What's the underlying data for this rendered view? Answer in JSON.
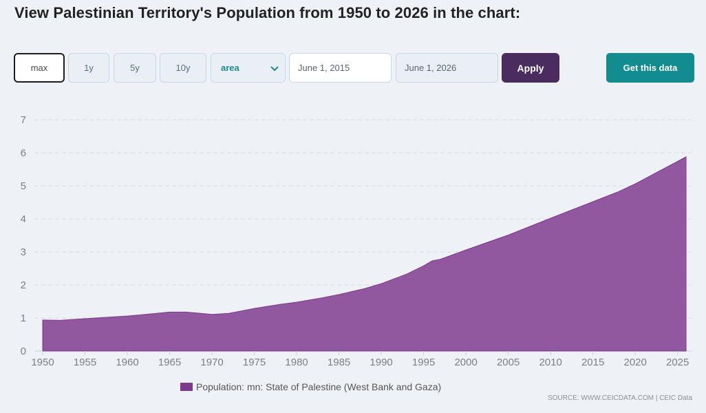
{
  "page": {
    "title": "View Palestinian Territory's Population from 1950 to 2026 in the chart:"
  },
  "controls": {
    "ranges": [
      "max",
      "1y",
      "5y",
      "10y"
    ],
    "active_range": "max",
    "chart_type": "area",
    "start_date": "June 1, 2015",
    "end_date": "June 1, 2026",
    "apply_label": "Apply",
    "get_data_label": "Get this data"
  },
  "colors": {
    "area_fill": "#91579f",
    "area_stroke": "#7b3a8c",
    "apply_bg": "#4a2c5e",
    "get_data_bg": "#138c8f",
    "accent_text": "#1a8a8e"
  },
  "chart_data": {
    "type": "area",
    "title": "",
    "xlabel": "",
    "ylabel": "",
    "xlim": [
      1950,
      2026
    ],
    "ylim": [
      0,
      7
    ],
    "x_ticks": [
      1950,
      1955,
      1960,
      1965,
      1970,
      1975,
      1980,
      1985,
      1990,
      1995,
      2000,
      2005,
      2010,
      2015,
      2020,
      2025
    ],
    "y_ticks": [
      0,
      1,
      2,
      3,
      4,
      5,
      6,
      7
    ],
    "grid": "horizontal dashed",
    "legend_position": "bottom-center",
    "series": [
      {
        "name": "Population: mn: State of Palestine (West Bank and Gaza)",
        "x": [
          1950,
          1952,
          1955,
          1958,
          1960,
          1963,
          1965,
          1967,
          1970,
          1972,
          1975,
          1978,
          1980,
          1983,
          1985,
          1988,
          1990,
          1993,
          1995,
          1996,
          1997,
          2000,
          2005,
          2010,
          2015,
          2018,
          2020,
          2023,
          2026
        ],
        "values": [
          0.94,
          0.93,
          0.98,
          1.03,
          1.06,
          1.13,
          1.18,
          1.18,
          1.11,
          1.14,
          1.29,
          1.41,
          1.48,
          1.61,
          1.71,
          1.89,
          2.04,
          2.33,
          2.58,
          2.73,
          2.78,
          3.06,
          3.51,
          4.02,
          4.52,
          4.82,
          5.06,
          5.47,
          5.88
        ]
      }
    ]
  },
  "legend": {
    "label": "Population: mn: State of Palestine (West Bank and Gaza)"
  },
  "source": {
    "text": "SOURCE: WWW.CEICDATA.COM | CEIC Data"
  }
}
